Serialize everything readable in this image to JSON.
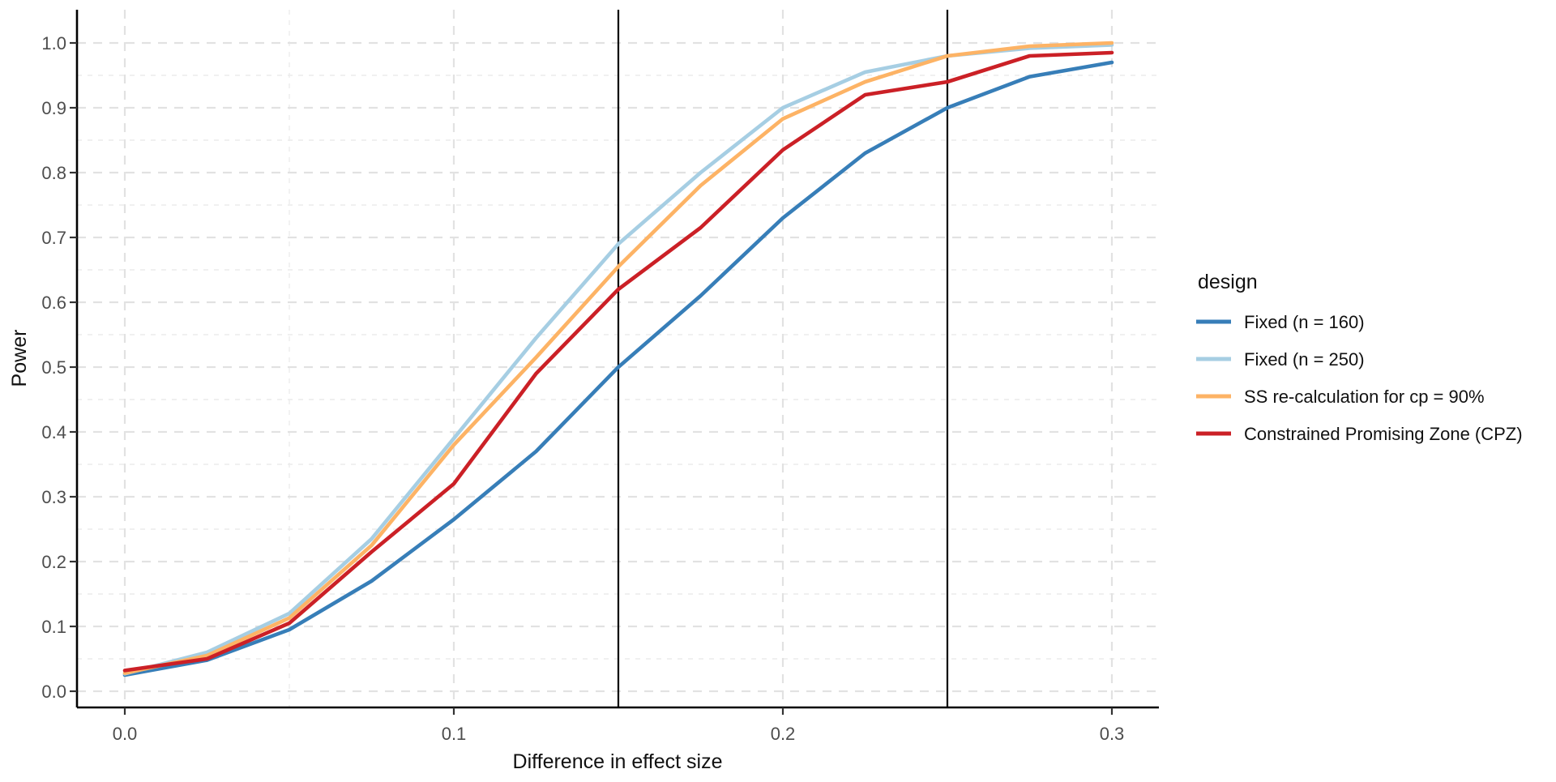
{
  "chart_data": {
    "type": "line",
    "title": "",
    "xlabel": "Difference in effect size",
    "ylabel": "Power",
    "xlim": [
      -0.0145,
      0.3143
    ],
    "ylim": [
      -0.025,
      1.051
    ],
    "grid": "dashed-major-and-minor",
    "x": [
      0,
      0.025,
      0.05,
      0.075,
      0.1,
      0.125,
      0.15,
      0.175,
      0.2,
      0.225,
      0.25,
      0.275,
      0.3
    ],
    "series": [
      {
        "name": "Fixed (n = 160)",
        "color": "#377EB8",
        "values": [
          0.025,
          0.048,
          0.095,
          0.17,
          0.265,
          0.37,
          0.5,
          0.61,
          0.73,
          0.83,
          0.9,
          0.948,
          0.97
        ]
      },
      {
        "name": "Fixed (n = 250)",
        "color": "#A6CEE3",
        "values": [
          0.027,
          0.06,
          0.12,
          0.235,
          0.39,
          0.545,
          0.69,
          0.8,
          0.9,
          0.955,
          0.98,
          0.992,
          0.997
        ]
      },
      {
        "name": "SS re-calculation for cp = 90%",
        "color": "#FDB365",
        "values": [
          0.028,
          0.055,
          0.113,
          0.225,
          0.38,
          0.515,
          0.655,
          0.78,
          0.883,
          0.94,
          0.98,
          0.995,
          1.0
        ]
      },
      {
        "name": "Constrained Promising Zone (CPZ)",
        "color": "#CB2026",
        "values": [
          0.032,
          0.05,
          0.105,
          0.215,
          0.32,
          0.49,
          0.62,
          0.715,
          0.835,
          0.92,
          0.94,
          0.98,
          0.985
        ]
      }
    ],
    "x_ticks": [
      "0.0",
      "0.1",
      "0.2",
      "0.3"
    ],
    "x_tick_values": [
      0,
      0.1,
      0.2,
      0.3
    ],
    "y_ticks": [
      "0.0",
      "0.1",
      "0.2",
      "0.3",
      "0.4",
      "0.5",
      "0.6",
      "0.7",
      "0.8",
      "0.9",
      "1.0"
    ],
    "y_tick_values": [
      0,
      0.1,
      0.2,
      0.3,
      0.4,
      0.5,
      0.6,
      0.7,
      0.8,
      0.9,
      1.0
    ],
    "x_minor": [
      0.05,
      0.15,
      0.25
    ],
    "y_minor": [
      0.05,
      0.15,
      0.25,
      0.35,
      0.45,
      0.55,
      0.65,
      0.75,
      0.85,
      0.95
    ],
    "reference_lines_x": [
      0.15,
      0.25
    ],
    "legend": {
      "title": "design",
      "position": "right",
      "entries": [
        "Fixed (n = 160)",
        "Fixed (n = 250)",
        "SS re-calculation for cp = 90%",
        "Constrained Promising Zone (CPZ)"
      ]
    },
    "colors": {
      "major_grid": "#e2e2e2",
      "minor_grid": "#ececec",
      "axis": "#000000",
      "reference_line": "#000000",
      "tick_label": "#4d4d4d"
    }
  }
}
